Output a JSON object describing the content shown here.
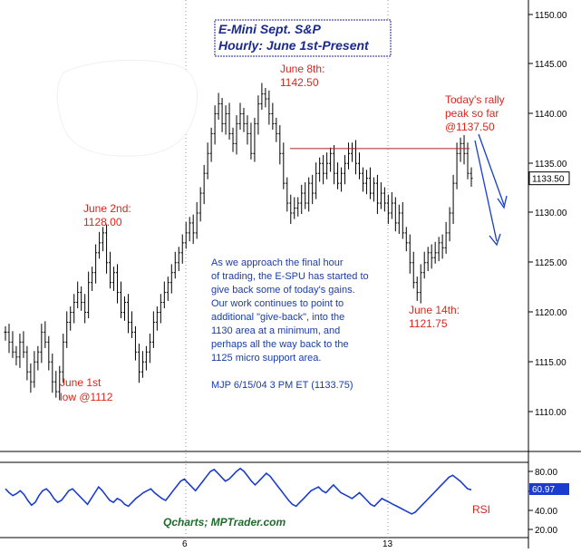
{
  "chart_data": [
    {
      "type": "bar",
      "subtype": "ohlc",
      "title": "E-Mini Sept. S&P",
      "subtitle": "Hourly: June 1st-Present",
      "ylim": [
        1105,
        1150
      ],
      "yticks": [
        "1110.00",
        "1115.00",
        "1120.00",
        "1125.00",
        "1130.00",
        "1135.00",
        "1140.00",
        "1145.00",
        "1150.00"
      ],
      "last_price_label": "1133.50",
      "last_price": 1133.5,
      "xticks": [
        "6",
        "13"
      ],
      "grid": false,
      "ohlc_closes": [
        1118,
        1117,
        1116,
        1115.5,
        1117,
        1116,
        1114,
        1113,
        1115,
        1116,
        1118,
        1117,
        1115,
        1113,
        1112,
        1114,
        1117,
        1119,
        1120,
        1121,
        1122,
        1121,
        1120,
        1123,
        1124,
        1126,
        1127,
        1128,
        1125,
        1123,
        1124,
        1122,
        1120,
        1121,
        1119,
        1118,
        1116,
        1114,
        1115,
        1116,
        1117,
        1119,
        1120,
        1121,
        1122,
        1123,
        1124,
        1125,
        1126,
        1127,
        1128,
        1129,
        1128,
        1130,
        1132,
        1134,
        1136,
        1138,
        1140,
        1141,
        1139,
        1140,
        1138,
        1137,
        1139,
        1140,
        1139,
        1138,
        1136,
        1139,
        1141,
        1142,
        1141.5,
        1140,
        1139,
        1138,
        1136,
        1133,
        1131,
        1130,
        1130.5,
        1131,
        1132,
        1131,
        1133,
        1132,
        1134,
        1135,
        1134,
        1135,
        1136,
        1134,
        1133,
        1134,
        1135,
        1136,
        1136.5,
        1135,
        1134,
        1133,
        1133.5,
        1132,
        1133,
        1131,
        1132,
        1131,
        1130,
        1131,
        1129,
        1130,
        1128,
        1127,
        1125,
        1123,
        1122,
        1124,
        1125,
        1126,
        1125.5,
        1126,
        1127,
        1126.5,
        1128,
        1130,
        1133,
        1136,
        1137,
        1136,
        1134,
        1133.5
      ],
      "resistance_level": 1136.5,
      "annotations": [
        {
          "id": "june8",
          "lines": [
            "June 8th:",
            "1142.50"
          ]
        },
        {
          "id": "rally",
          "lines": [
            "Today's rally",
            "peak so far",
            "@1137.50"
          ]
        },
        {
          "id": "june2",
          "lines": [
            "June 2nd:",
            "1128.00"
          ]
        },
        {
          "id": "june1",
          "lines": [
            "June 1st",
            "low @1112"
          ]
        },
        {
          "id": "june14",
          "lines": [
            "June 14th:",
            "1121.75"
          ]
        }
      ],
      "commentary": [
        "As we approach the final hour",
        "of trading, the E-SPU has started to",
        "give back some of today's gains.",
        "Our work continues to point to",
        "additional \"give-back\", into the",
        "1130 area at a minimum, and",
        "perhaps all the way back to the",
        "1125 micro support area."
      ],
      "signature": "MJP 6/15/04 3 PM ET (1133.75)"
    },
    {
      "type": "line",
      "series": [
        {
          "name": "RSI",
          "values": [
            62,
            58,
            55,
            57,
            60,
            56,
            50,
            45,
            48,
            55,
            60,
            62,
            58,
            52,
            48,
            50,
            55,
            60,
            62,
            58,
            54,
            50,
            46,
            52,
            58,
            64,
            60,
            55,
            50,
            48,
            52,
            50,
            46,
            44,
            48,
            52,
            55,
            58,
            60,
            62,
            58,
            55,
            52,
            50,
            55,
            60,
            65,
            70,
            72,
            68,
            64,
            60,
            65,
            70,
            75,
            80,
            82,
            78,
            74,
            70,
            72,
            76,
            80,
            83,
            80,
            75,
            70,
            66,
            70,
            74,
            78,
            75,
            70,
            65,
            60,
            55,
            50,
            46,
            44,
            48,
            52,
            56,
            60,
            62,
            64,
            60,
            58,
            62,
            66,
            62,
            58,
            56,
            54,
            52,
            55,
            58,
            54,
            50,
            46,
            44,
            48,
            52,
            50,
            48,
            46,
            44,
            42,
            40,
            38,
            36,
            38,
            42,
            46,
            50,
            54,
            58,
            62,
            66,
            70,
            74,
            76,
            73,
            70,
            66,
            62,
            61
          ]
        }
      ],
      "ylim": [
        10,
        90
      ],
      "yticks": [
        "80.00",
        "60.00",
        "40.00",
        "20.00"
      ],
      "last_value_label": "60.97",
      "indicator_label": "RSI",
      "watermark": "Qcharts; MPTrader.com"
    }
  ],
  "colors": {
    "price_bars": "#000000",
    "annotation_red": "#d9261c",
    "annotation_blue": "#1a3ca8",
    "rsi_line": "#1a3ccf",
    "resistance_line": "#b02020",
    "arrows": "#1a3ccf",
    "watermark": "#1f6b2a"
  }
}
